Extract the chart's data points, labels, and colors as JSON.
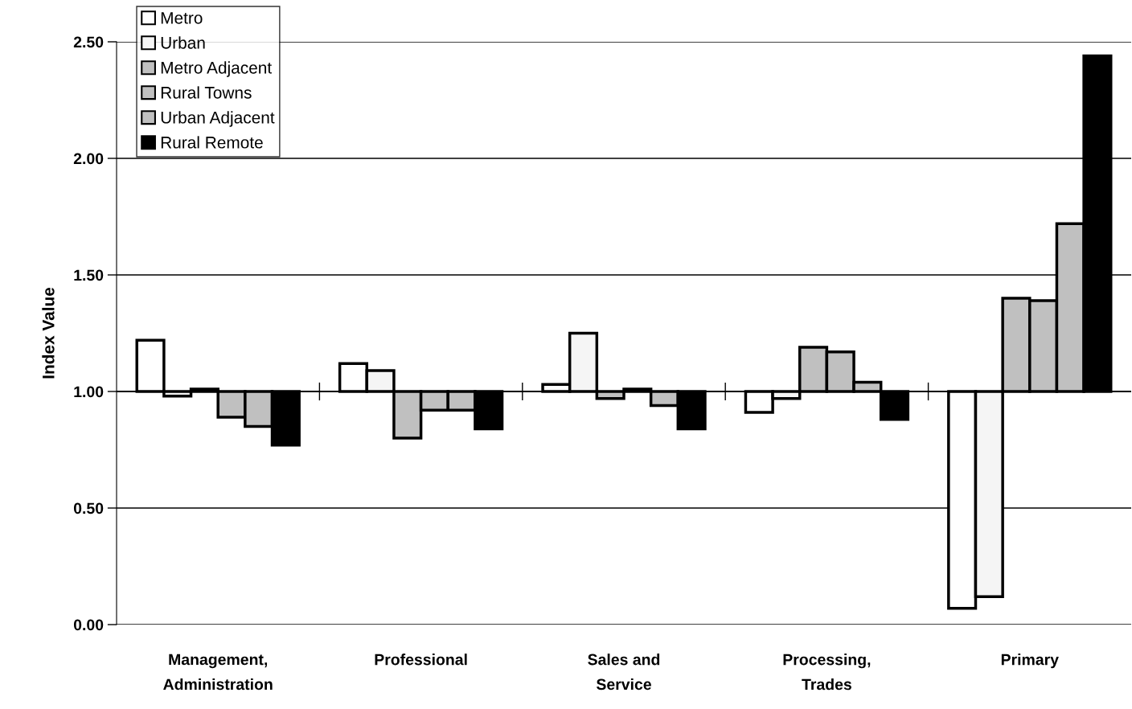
{
  "chart_data": {
    "type": "bar",
    "ylabel": "Index Value",
    "categories": [
      "Management,\nAdministration",
      "Professional",
      "Sales and\nService",
      "Processing,\nTrades",
      "Primary"
    ],
    "series": [
      {
        "name": "Metro",
        "color": "#ffffff",
        "base": [
          1,
          1,
          1,
          1,
          1
        ],
        "values": [
          0.22,
          0.12,
          0.03,
          -0.09,
          -0.93
        ]
      },
      {
        "name": "Urban",
        "color": "#f5f5f5",
        "base": [
          1,
          1,
          1,
          1,
          1
        ],
        "values": [
          -0.02,
          0.09,
          0.25,
          -0.03,
          -0.88
        ]
      },
      {
        "name": "Metro Adjacent",
        "color": "#c0c0c0",
        "base": [
          1,
          1,
          1,
          1,
          1
        ],
        "values": [
          0.01,
          -0.2,
          -0.03,
          0.19,
          0.4
        ]
      },
      {
        "name": "Rural Towns",
        "color": "#c0c0c0",
        "base": [
          1,
          1,
          1,
          1,
          1
        ],
        "values": [
          -0.11,
          -0.08,
          0.01,
          0.17,
          0.39
        ]
      },
      {
        "name": "Urban Adjacent",
        "color": "#c0c0c0",
        "base": [
          1,
          1,
          1,
          1,
          1
        ],
        "values": [
          -0.15,
          -0.08,
          -0.06,
          0.04,
          0.72
        ]
      },
      {
        "name": "Rural Remote",
        "color": "#000000",
        "base": [
          1,
          1,
          1,
          1,
          1
        ],
        "values": [
          -0.23,
          -0.16,
          -0.16,
          -0.12,
          1.44
        ]
      }
    ],
    "ylim": [
      0,
      2.5
    ],
    "yticks": [
      {
        "value": 0,
        "label": "0.00"
      },
      {
        "value": 0.5,
        "label": "0.50"
      },
      {
        "value": 1,
        "label": "1.00"
      },
      {
        "value": 1.5,
        "label": "1.50"
      },
      {
        "value": 2,
        "label": "2.00"
      },
      {
        "value": 2.5,
        "label": "2.50"
      }
    ],
    "grid": "y",
    "legend": "top left",
    "ref_lines": [
      {
        "axis": "y",
        "value": 1,
        "color": "#000000"
      }
    ]
  }
}
